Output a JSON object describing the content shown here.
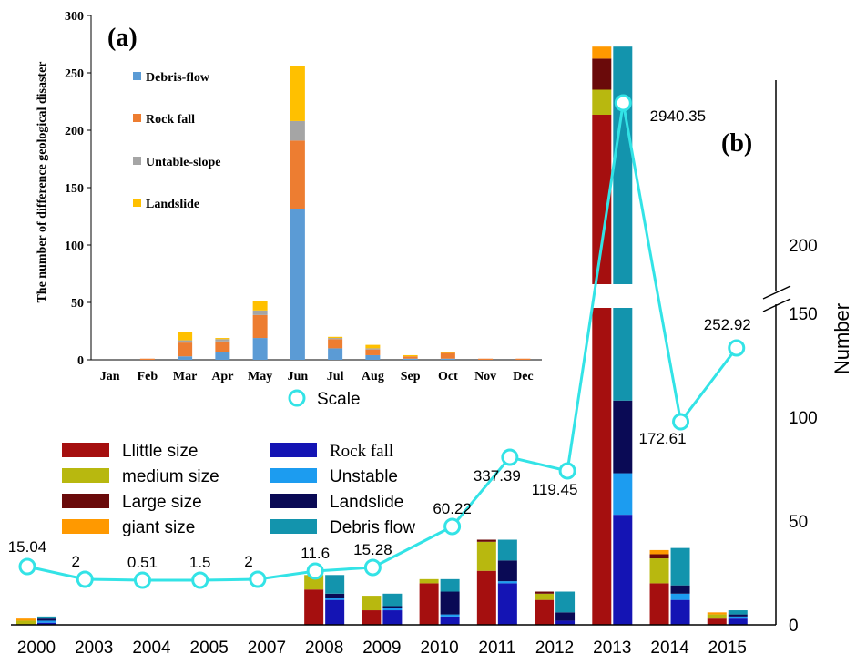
{
  "chart_data": [
    {
      "panel_label": "(a)",
      "type": "bar",
      "stacked": true,
      "ylabel": "The number of difference geological disaster",
      "ylim": [
        0,
        300
      ],
      "yticks": [
        0,
        50,
        100,
        150,
        200,
        250,
        300
      ],
      "categories": [
        "Jan",
        "Feb",
        "Mar",
        "Apr",
        "May",
        "Jun",
        "Jul",
        "Aug",
        "Sep",
        "Oct",
        "Nov",
        "Dec"
      ],
      "series": [
        {
          "name": "Debris-flow",
          "color": "#5b9bd5",
          "values": [
            0,
            0,
            3,
            7,
            19,
            131,
            10,
            4,
            1,
            1,
            0,
            0
          ]
        },
        {
          "name": "Rock fall",
          "color": "#ed7d31",
          "values": [
            0,
            1,
            12,
            9,
            20,
            60,
            8,
            5,
            2,
            5,
            1,
            1
          ]
        },
        {
          "name": "Untable-slope",
          "color": "#a5a5a5",
          "values": [
            0,
            0,
            2,
            2,
            4,
            17,
            1,
            1,
            0,
            0,
            0,
            0
          ]
        },
        {
          "name": "Landslide",
          "color": "#ffc000",
          "values": [
            0,
            0,
            7,
            1,
            8,
            48,
            1,
            3,
            1,
            1,
            0,
            0
          ]
        }
      ],
      "legend_position": "upper-left"
    },
    {
      "panel_label": "(b)",
      "type": "bar",
      "stacked": true,
      "ylabel": "Number",
      "axis_break": {
        "lower": 150,
        "upper": 200
      },
      "yticks": [
        0,
        50,
        100,
        150,
        200
      ],
      "categories": [
        "2000",
        "2003",
        "2004",
        "2005",
        "2007",
        "2008",
        "2009",
        "2010",
        "2011",
        "2012",
        "2013",
        "2014",
        "2015"
      ],
      "size_series": [
        {
          "name": "Llittle size",
          "color": "#a50f0f",
          "values": [
            0,
            0,
            0,
            0,
            0,
            17,
            7,
            20,
            26,
            12,
            330,
            20,
            3
          ]
        },
        {
          "name": "medium size",
          "color": "#b8b80f",
          "values": [
            2,
            0,
            0,
            0,
            0,
            7,
            7,
            2,
            14,
            3,
            25,
            12,
            2
          ]
        },
        {
          "name": "Large size",
          "color": "#6a0a0a",
          "values": [
            0,
            0,
            0,
            0,
            0,
            0,
            0,
            0,
            1,
            1,
            31,
            2,
            0
          ]
        },
        {
          "name": "giant size",
          "color": "#ff9900",
          "values": [
            1,
            0,
            0,
            0,
            0,
            0,
            0,
            0,
            0,
            0,
            12,
            2,
            1
          ]
        }
      ],
      "type_series": [
        {
          "name": "Rock fall",
          "color": "#1414b4",
          "values": [
            1,
            0,
            0,
            0,
            0,
            12,
            7,
            4,
            20,
            2,
            53,
            12,
            3
          ]
        },
        {
          "name": "Unstable",
          "color": "#1c9cf0",
          "values": [
            1,
            0,
            0,
            0,
            0,
            1,
            1,
            1,
            1,
            0,
            20,
            3,
            1
          ]
        },
        {
          "name": "Landslide",
          "color": "#0a0a55",
          "values": [
            1,
            0,
            0,
            0,
            0,
            2,
            1,
            11,
            10,
            4,
            35,
            4,
            1
          ]
        },
        {
          "name": "Debris flow",
          "color": "#1394ad",
          "values": [
            1,
            0,
            0,
            0,
            0,
            9,
            6,
            6,
            10,
            10,
            290,
            18,
            2
          ]
        }
      ],
      "scale_series": {
        "name": "Scale",
        "color": "#33e3e6",
        "labels": [
          "15.04",
          "2",
          "0.51",
          "1.5",
          "2",
          "11.6",
          "15.28",
          "60.22",
          "337.39",
          "119.45",
          "2940.35",
          "172.61",
          "252.92"
        ]
      },
      "legend_position": "lower-left"
    }
  ]
}
